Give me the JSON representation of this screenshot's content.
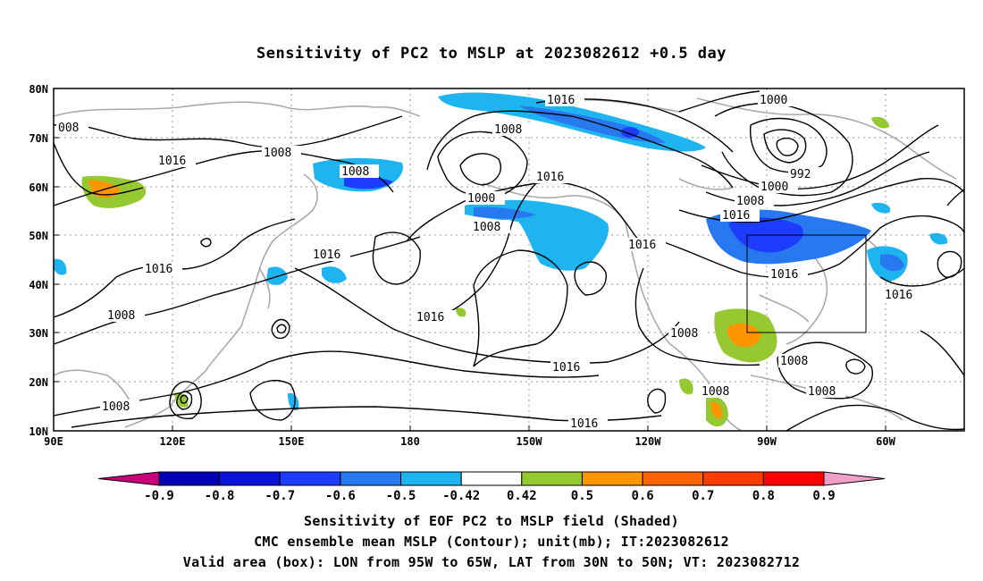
{
  "title": "Sensitivity of PC2 to MSLP at 2023082612 +0.5 day",
  "lat_labels": [
    "80N",
    "70N",
    "60N",
    "50N",
    "40N",
    "30N",
    "20N",
    "10N"
  ],
  "lon_labels": [
    "90E",
    "120E",
    "150E",
    "180",
    "150W",
    "120W",
    "90W",
    "60W"
  ],
  "contour_labels": [
    "008",
    "1016",
    "1008",
    "1016",
    "1008",
    "1016",
    "1008",
    "1016",
    "1016",
    "1000",
    "1008",
    "1016",
    "1000",
    "992",
    "1000",
    "1008",
    "1016",
    "1016",
    "1016",
    "1016",
    "1016",
    "1008",
    "1008",
    "1008",
    "1008",
    "1008",
    "1008"
  ],
  "colorbar": {
    "labels": [
      "-0.9",
      "-0.8",
      "-0.7",
      "-0.6",
      "-0.5",
      "-0.42",
      "0.42",
      "0.5",
      "0.6",
      "0.7",
      "0.8",
      "0.9"
    ],
    "colors": [
      "#c8007a",
      "#0000b4",
      "#0a14d8",
      "#1e3cff",
      "#2878f0",
      "#1eb4f0",
      "#ffffff",
      "#96c832",
      "#ff9600",
      "#ff6400",
      "#ff3c00",
      "#ff0000",
      "#f0a0c8"
    ]
  },
  "captions": {
    "line1": "Sensitivity of EOF PC2 to MSLP field (Shaded)",
    "line2": "CMC ensemble mean MSLP (Contour); unit(mb); IT:2023082612",
    "line3": "Valid area (box): LON from 95W to 65W, LAT from 30N to 50N; VT: 2023082712"
  }
}
